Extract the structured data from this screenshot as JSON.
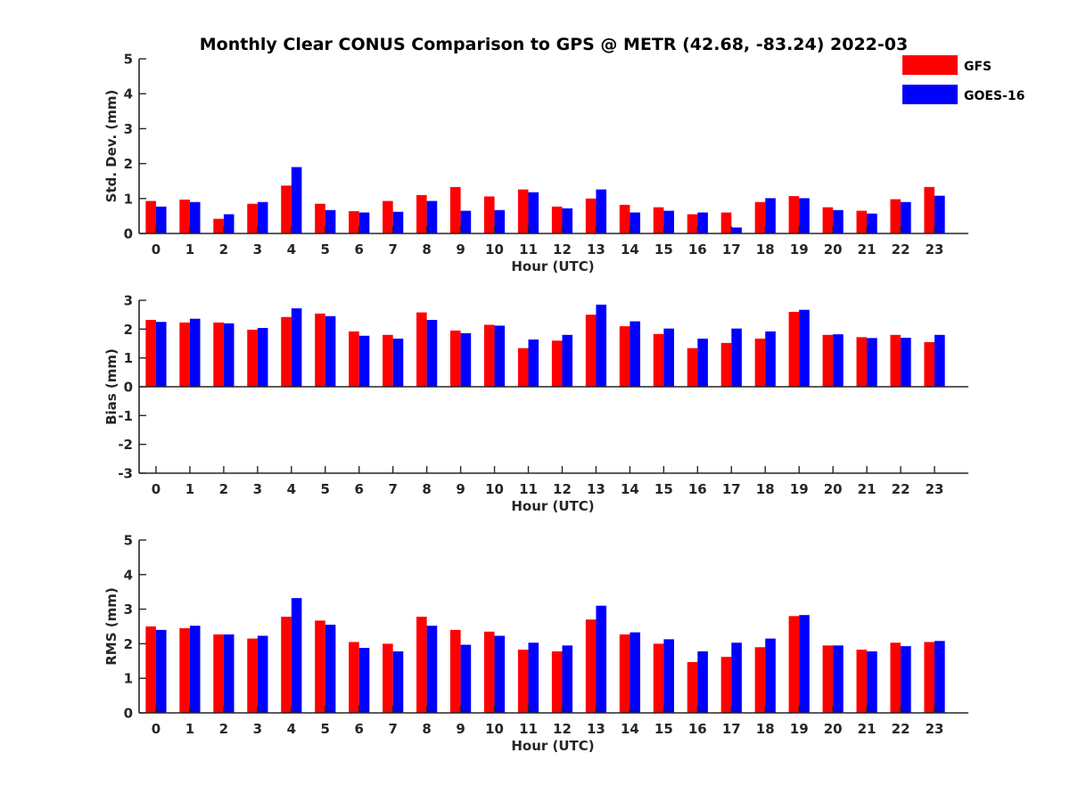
{
  "chart_data": {
    "title": "Monthly Clear CONUS Comparison to GPS @ METR (42.68, -83.24) 2022-03",
    "type": "bar",
    "legend": {
      "position": "top-right",
      "entries": [
        "GFS",
        "GOES-16"
      ]
    },
    "colors": {
      "GFS": "#ff0000",
      "GOES-16": "#0000ff"
    },
    "categories": [
      "0",
      "1",
      "2",
      "3",
      "4",
      "5",
      "6",
      "7",
      "8",
      "9",
      "10",
      "11",
      "12",
      "13",
      "14",
      "15",
      "16",
      "17",
      "18",
      "19",
      "20",
      "21",
      "22",
      "23"
    ],
    "panels": [
      {
        "xlabel": "Hour (UTC)",
        "ylabel": "Std. Dev. (mm)",
        "ylim": [
          0,
          5
        ],
        "yticks": [
          "0",
          "1",
          "2",
          "3",
          "4",
          "5"
        ],
        "series": [
          {
            "name": "GFS",
            "values": [
              0.93,
              0.97,
              0.42,
              0.85,
              1.37,
              0.85,
              0.64,
              0.93,
              1.1,
              1.33,
              1.06,
              1.26,
              0.77,
              1.0,
              0.82,
              0.75,
              0.55,
              0.6,
              0.9,
              1.07,
              0.75,
              0.65,
              0.98,
              1.33
            ]
          },
          {
            "name": "GOES-16",
            "values": [
              0.77,
              0.9,
              0.55,
              0.9,
              1.9,
              0.67,
              0.6,
              0.62,
              0.93,
              0.65,
              0.67,
              1.18,
              0.72,
              1.26,
              0.6,
              0.65,
              0.6,
              0.17,
              1.01,
              1.01,
              0.67,
              0.57,
              0.9,
              1.08
            ]
          }
        ]
      },
      {
        "xlabel": "Hour (UTC)",
        "ylabel": "Bias (mm)",
        "ylim": [
          -3,
          3
        ],
        "yticks": [
          "-3",
          "-2",
          "-1",
          "0",
          "1",
          "2",
          "3"
        ],
        "series": [
          {
            "name": "GFS",
            "values": [
              2.32,
              2.23,
              2.23,
              1.98,
              2.42,
              2.54,
              1.92,
              1.8,
              2.58,
              1.95,
              2.15,
              1.34,
              1.6,
              2.5,
              2.1,
              1.83,
              1.34,
              1.52,
              1.67,
              2.6,
              1.8,
              1.72,
              1.8,
              1.55
            ]
          },
          {
            "name": "GOES-16",
            "values": [
              2.25,
              2.36,
              2.2,
              2.04,
              2.72,
              2.45,
              1.77,
              1.67,
              2.32,
              1.86,
              2.12,
              1.64,
              1.8,
              2.85,
              2.27,
              2.02,
              1.67,
              2.02,
              1.92,
              2.67,
              1.82,
              1.69,
              1.7,
              1.8
            ]
          }
        ]
      },
      {
        "xlabel": "Hour (UTC)",
        "ylabel": "RMS (mm)",
        "ylim": [
          0,
          5
        ],
        "yticks": [
          "0",
          "1",
          "2",
          "3",
          "4",
          "5"
        ],
        "series": [
          {
            "name": "GFS",
            "values": [
              2.5,
              2.45,
              2.27,
              2.15,
              2.78,
              2.67,
              2.05,
              2.0,
              2.78,
              2.4,
              2.35,
              1.83,
              1.78,
              2.7,
              2.27,
              2.0,
              1.47,
              1.62,
              1.9,
              2.8,
              1.95,
              1.83,
              2.03,
              2.05
            ]
          },
          {
            "name": "GOES-16",
            "values": [
              2.4,
              2.52,
              2.27,
              2.23,
              3.32,
              2.55,
              1.88,
              1.78,
              2.52,
              1.97,
              2.23,
              2.03,
              1.95,
              3.1,
              2.33,
              2.13,
              1.78,
              2.03,
              2.15,
              2.83,
              1.95,
              1.78,
              1.93,
              2.08
            ]
          }
        ]
      }
    ]
  }
}
